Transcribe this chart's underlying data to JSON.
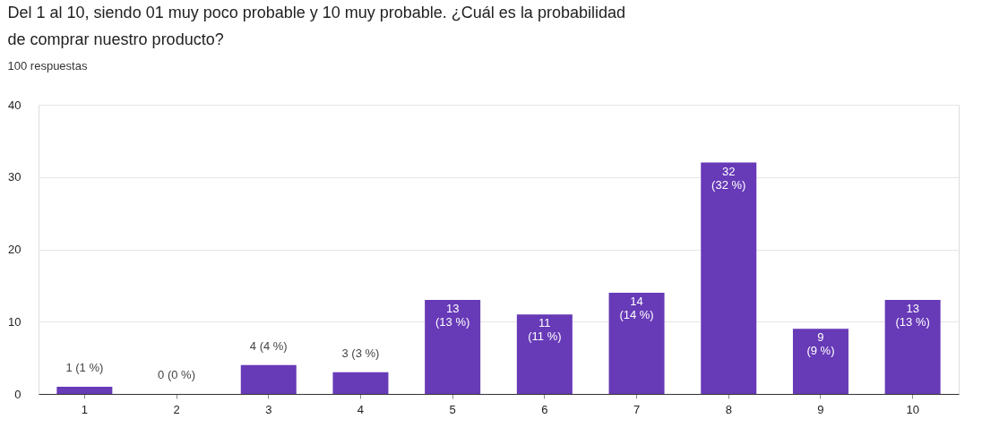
{
  "chart_data": {
    "type": "bar",
    "title": "Del 1 al 10, siendo 01 muy poco probable y 10 muy probable. ¿Cuál es la probabilidad de comprar nuestro producto?",
    "subtitle": "100 respuestas",
    "categories": [
      "1",
      "2",
      "3",
      "4",
      "5",
      "6",
      "7",
      "8",
      "9",
      "10"
    ],
    "values": [
      1,
      0,
      4,
      3,
      13,
      11,
      14,
      32,
      9,
      13
    ],
    "value_labels": [
      "1 (1 %)",
      "0 (0 %)",
      "4 (4 %)",
      "3 (3 %)",
      "13 (13 %)",
      "11 (11 %)",
      "14 (14 %)",
      "32 (32 %)",
      "9 (9 %)",
      "13 (13 %)"
    ],
    "color": "#673ab7",
    "ylim": [
      0,
      40
    ],
    "yticks": [
      0,
      10,
      20,
      30,
      40
    ],
    "grid": "y"
  }
}
